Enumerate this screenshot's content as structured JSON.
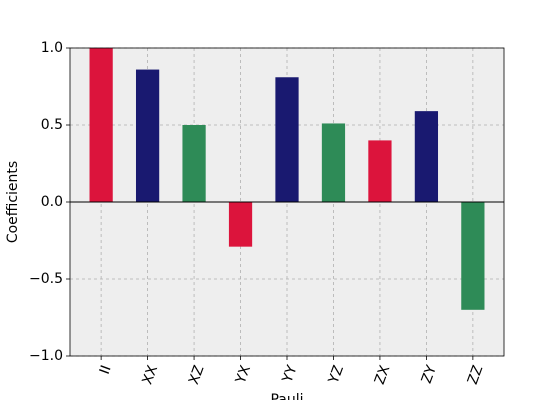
{
  "chart_data": {
    "type": "bar",
    "x_label": "Pauli",
    "y_label": "Coefficients",
    "categories": [
      "II",
      "XX",
      "XZ",
      "YX",
      "YY",
      "YZ",
      "ZX",
      "ZY",
      "ZZ"
    ],
    "values": [
      1.0,
      0.86,
      0.5,
      -0.29,
      0.81,
      0.51,
      0.4,
      0.59,
      -0.7
    ],
    "colors": [
      "#dc143c",
      "#191970",
      "#2e8b57",
      "#dc143c",
      "#191970",
      "#2e8b57",
      "#dc143c",
      "#191970",
      "#2e8b57"
    ],
    "ylim": [
      -1.0,
      1.0
    ],
    "yticks": [
      {
        "value": -1.0,
        "label": "−1.0"
      },
      {
        "value": -0.5,
        "label": "−0.5"
      },
      {
        "value": 0.0,
        "label": "0.0"
      },
      {
        "value": 0.5,
        "label": "0.5"
      },
      {
        "value": 1.0,
        "label": "1.0"
      }
    ],
    "grid": true
  }
}
